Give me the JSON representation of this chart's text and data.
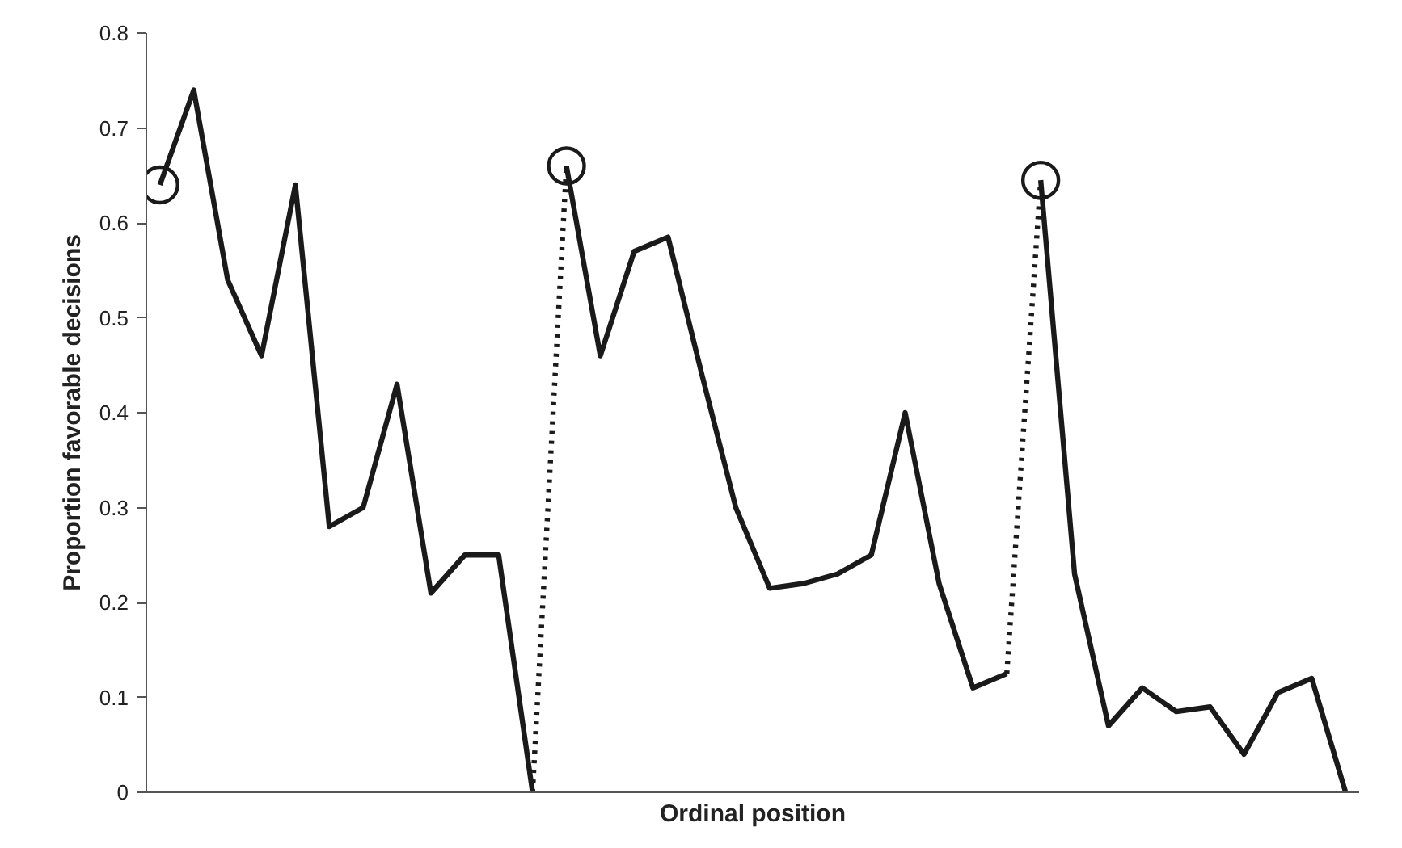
{
  "chart_data": {
    "type": "line",
    "xlabel": "Ordinal position",
    "ylabel": "Proportion favorable decisions",
    "categories": [
      null,
      null,
      null,
      null,
      null,
      null,
      null,
      null,
      null,
      null,
      null,
      null,
      null,
      null,
      null,
      null,
      null,
      null,
      null,
      null,
      null,
      null,
      null,
      null,
      null,
      null,
      null,
      null,
      null,
      null,
      null,
      null,
      null,
      null,
      null,
      null
    ],
    "ylim": [
      0,
      0.8
    ],
    "yticks": [
      0,
      0.1,
      0.2,
      0.3,
      0.4,
      0.5,
      0.6,
      0.7,
      0.8
    ],
    "grid": false,
    "series": [
      {
        "color": "#1a1a1a",
        "line_style": "solid",
        "values": [
          0.64,
          0.74,
          0.54,
          0.46,
          0.64,
          0.28,
          0.3,
          0.43,
          0.21,
          0.25,
          0.25,
          0.0,
          null,
          null,
          null,
          null,
          null,
          null,
          null,
          null,
          null,
          null,
          null,
          null,
          null,
          null,
          null,
          null,
          null,
          null,
          null,
          null,
          null,
          null,
          null,
          null
        ]
      },
      {
        "color": "#1a1a1a",
        "line_style": "solid",
        "values": [
          null,
          null,
          null,
          null,
          null,
          null,
          null,
          null,
          null,
          null,
          null,
          null,
          0.66,
          0.46,
          0.57,
          0.585,
          0.44,
          0.3,
          0.215,
          0.22,
          0.23,
          0.25,
          0.4,
          0.22,
          0.11,
          0.125,
          null,
          null,
          null,
          null,
          null,
          null,
          null,
          null,
          null,
          null
        ]
      },
      {
        "color": "#1a1a1a",
        "line_style": "solid",
        "values": [
          null,
          null,
          null,
          null,
          null,
          null,
          null,
          null,
          null,
          null,
          null,
          null,
          null,
          null,
          null,
          null,
          null,
          null,
          null,
          null,
          null,
          null,
          null,
          null,
          null,
          null,
          0.645,
          0.23,
          0.07,
          0.11,
          0.085,
          0.09,
          0.04,
          0.105,
          0.12,
          0.0
        ]
      },
      {
        "color": "#1a1a1a",
        "line_style": "dotted",
        "values": [
          null,
          null,
          null,
          null,
          null,
          null,
          null,
          null,
          null,
          null,
          null,
          0.0,
          0.66,
          null,
          null,
          null,
          null,
          null,
          null,
          null,
          null,
          null,
          null,
          null,
          null,
          0.125,
          0.645,
          null,
          null,
          null,
          null,
          null,
          null,
          null,
          null,
          null
        ]
      },
      {
        "type": "scatter",
        "color": "#1a1a1a",
        "marker": "circle",
        "values": [
          0.64,
          null,
          null,
          null,
          null,
          null,
          null,
          null,
          null,
          null,
          null,
          null,
          0.66,
          null,
          null,
          null,
          null,
          null,
          null,
          null,
          null,
          null,
          null,
          null,
          null,
          null,
          0.645,
          null,
          null,
          null,
          null,
          null,
          null,
          null,
          null,
          null
        ]
      }
    ]
  }
}
